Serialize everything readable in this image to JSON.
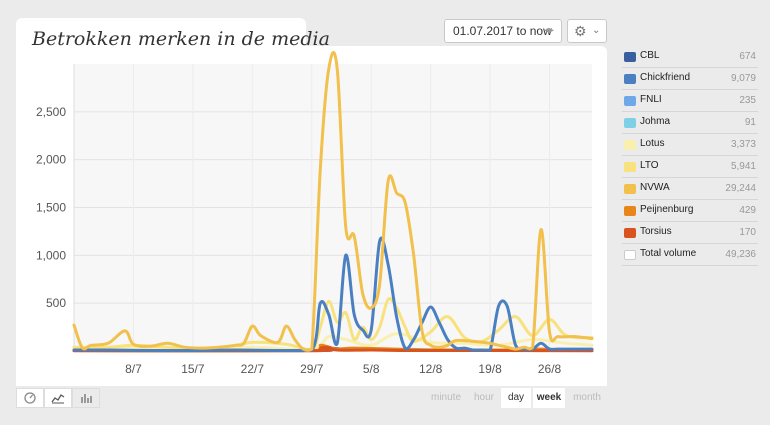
{
  "title": "Betrokken merken in de media",
  "date_range": "01.07.2017 to now",
  "granularity": [
    "minute",
    "hour",
    "day",
    "week",
    "month"
  ],
  "colors": {
    "NVWA": "#f2c04c",
    "Chickfriend": "#4a7fc1",
    "LTO": "#f7e27e",
    "Lotus": "#f9f0b0",
    "Peijnenburg": "#e8861a",
    "Torsius": "#d9531e",
    "CBL": "#3a5f9e",
    "FNLI": "#6fa8e8",
    "Johma": "#7ed0e6",
    "Total volume": "#ffffff"
  },
  "legend": [
    {
      "name": "CBL",
      "value": "674",
      "color": "#3a5f9e"
    },
    {
      "name": "Chickfriend",
      "value": "9,079",
      "color": "#4a7fc1"
    },
    {
      "name": "FNLI",
      "value": "235",
      "color": "#6fa8e8"
    },
    {
      "name": "Johma",
      "value": "91",
      "color": "#7ed0e6"
    },
    {
      "name": "Lotus",
      "value": "3,373",
      "color": "#f9f0b0"
    },
    {
      "name": "LTO",
      "value": "5,941",
      "color": "#f7e27e"
    },
    {
      "name": "NVWA",
      "value": "29,244",
      "color": "#f2c04c"
    },
    {
      "name": "Peijnenburg",
      "value": "429",
      "color": "#e8861a"
    },
    {
      "name": "Torsius",
      "value": "170",
      "color": "#d9531e"
    },
    {
      "name": "Total volume",
      "value": "49,236",
      "color": "#ffffff"
    }
  ],
  "chart_data": {
    "type": "line",
    "title": "Betrokken merken in de media",
    "x_start": "2017-07-01",
    "x_end": "2017-08-31",
    "x_ticks": [
      "8/7",
      "15/7",
      "22/7",
      "29/7",
      "5/8",
      "12/8",
      "19/8",
      "26/8"
    ],
    "y_ticks": [
      500,
      1000,
      1500,
      2000,
      2500
    ],
    "y_tick_labels": [
      "500",
      "1,000",
      "1,500",
      "2,000",
      "2,500"
    ],
    "ylim": [
      0,
      3000
    ],
    "grid": true,
    "series": [
      {
        "name": "NVWA",
        "color": "#f2c04c",
        "x": [
          "2017-07-01",
          "2017-07-02",
          "2017-07-03",
          "2017-07-05",
          "2017-07-07",
          "2017-07-08",
          "2017-07-10",
          "2017-07-12",
          "2017-07-14",
          "2017-07-16",
          "2017-07-18",
          "2017-07-20",
          "2017-07-21",
          "2017-07-22",
          "2017-07-23",
          "2017-07-25",
          "2017-07-26",
          "2017-07-27",
          "2017-07-28",
          "2017-07-29",
          "2017-07-30",
          "2017-07-31",
          "2017-08-01",
          "2017-08-02",
          "2017-08-03",
          "2017-08-04",
          "2017-08-05",
          "2017-08-06",
          "2017-08-07",
          "2017-08-08",
          "2017-08-09",
          "2017-08-10",
          "2017-08-11",
          "2017-08-12",
          "2017-08-13",
          "2017-08-14",
          "2017-08-15",
          "2017-08-17",
          "2017-08-19",
          "2017-08-20",
          "2017-08-21",
          "2017-08-22",
          "2017-08-23",
          "2017-08-24",
          "2017-08-25",
          "2017-08-26",
          "2017-08-27",
          "2017-08-29",
          "2017-08-31"
        ],
        "y": [
          270,
          30,
          60,
          80,
          210,
          70,
          50,
          80,
          40,
          30,
          40,
          60,
          80,
          260,
          160,
          90,
          260,
          120,
          20,
          20,
          1900,
          2950,
          2950,
          1300,
          1200,
          600,
          450,
          700,
          1780,
          1650,
          1550,
          1000,
          200,
          60,
          40,
          60,
          110,
          100,
          80,
          60,
          40,
          20,
          40,
          40,
          1270,
          200,
          150,
          150,
          130
        ]
      },
      {
        "name": "Chickfriend",
        "color": "#4a7fc1",
        "x": [
          "2017-07-01",
          "2017-07-05",
          "2017-07-10",
          "2017-07-15",
          "2017-07-20",
          "2017-07-25",
          "2017-07-29",
          "2017-07-30",
          "2017-07-31",
          "2017-08-01",
          "2017-08-02",
          "2017-08-03",
          "2017-08-04",
          "2017-08-05",
          "2017-08-06",
          "2017-08-07",
          "2017-08-08",
          "2017-08-09",
          "2017-08-10",
          "2017-08-11",
          "2017-08-12",
          "2017-08-13",
          "2017-08-14",
          "2017-08-15",
          "2017-08-16",
          "2017-08-17",
          "2017-08-18",
          "2017-08-19",
          "2017-08-20",
          "2017-08-21",
          "2017-08-22",
          "2017-08-23",
          "2017-08-24",
          "2017-08-25",
          "2017-08-26",
          "2017-08-27",
          "2017-08-29",
          "2017-08-31"
        ],
        "y": [
          10,
          10,
          5,
          5,
          10,
          5,
          10,
          500,
          380,
          80,
          1000,
          380,
          220,
          220,
          1150,
          900,
          350,
          30,
          120,
          300,
          460,
          300,
          120,
          30,
          30,
          10,
          10,
          10,
          470,
          470,
          60,
          20,
          20,
          80,
          20,
          20,
          20,
          20
        ]
      },
      {
        "name": "LTO",
        "color": "#f7e27e",
        "x": [
          "2017-07-01",
          "2017-07-05",
          "2017-07-08",
          "2017-07-12",
          "2017-07-18",
          "2017-07-22",
          "2017-07-26",
          "2017-07-29",
          "2017-07-30",
          "2017-07-31",
          "2017-08-01",
          "2017-08-02",
          "2017-08-03",
          "2017-08-04",
          "2017-08-05",
          "2017-08-06",
          "2017-08-07",
          "2017-08-08",
          "2017-08-09",
          "2017-08-10",
          "2017-08-12",
          "2017-08-14",
          "2017-08-16",
          "2017-08-18",
          "2017-08-20",
          "2017-08-22",
          "2017-08-24",
          "2017-08-26",
          "2017-08-28",
          "2017-08-31"
        ],
        "y": [
          40,
          40,
          60,
          40,
          30,
          90,
          70,
          20,
          250,
          520,
          300,
          400,
          120,
          250,
          120,
          250,
          540,
          450,
          250,
          100,
          200,
          360,
          140,
          100,
          220,
          360,
          160,
          330,
          160,
          140
        ]
      },
      {
        "name": "Lotus",
        "color": "#f9f0b0",
        "x": [
          "2017-07-01",
          "2017-07-08",
          "2017-07-15",
          "2017-07-22",
          "2017-07-29",
          "2017-07-31",
          "2017-08-02",
          "2017-08-05",
          "2017-08-08",
          "2017-08-12",
          "2017-08-16",
          "2017-08-20",
          "2017-08-24",
          "2017-08-28",
          "2017-08-31"
        ],
        "y": [
          30,
          30,
          20,
          40,
          20,
          150,
          120,
          60,
          180,
          90,
          80,
          60,
          120,
          80,
          60
        ]
      },
      {
        "name": "Peijnenburg",
        "color": "#e8861a",
        "x": [
          "2017-07-01",
          "2017-07-29",
          "2017-07-30",
          "2017-07-31",
          "2017-08-01",
          "2017-08-03",
          "2017-08-08",
          "2017-08-12",
          "2017-08-20",
          "2017-08-25",
          "2017-08-31"
        ],
        "y": [
          5,
          5,
          60,
          40,
          20,
          30,
          20,
          10,
          10,
          20,
          5
        ]
      },
      {
        "name": "Torsius",
        "color": "#d9531e",
        "x": [
          "2017-07-01",
          "2017-07-29",
          "2017-07-30",
          "2017-07-31",
          "2017-08-01",
          "2017-08-05",
          "2017-08-10",
          "2017-08-20",
          "2017-08-31"
        ],
        "y": [
          2,
          2,
          30,
          40,
          10,
          10,
          5,
          5,
          2
        ]
      },
      {
        "name": "CBL",
        "color": "#3a5f9e",
        "x": [
          "2017-07-01",
          "2017-07-29",
          "2017-07-30",
          "2017-07-31",
          "2017-08-02",
          "2017-08-08",
          "2017-08-14",
          "2017-08-25",
          "2017-08-31"
        ],
        "y": [
          5,
          5,
          20,
          30,
          20,
          15,
          10,
          10,
          5
        ]
      }
    ]
  }
}
